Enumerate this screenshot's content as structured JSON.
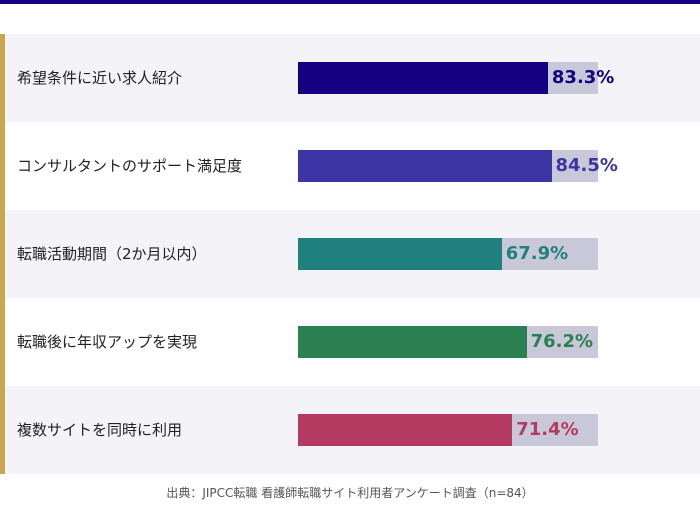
{
  "chart_data": {
    "type": "bar",
    "orientation": "horizontal",
    "categories": [
      "希望条件に近い求人紹介",
      "コンサルタントのサポート満足度",
      "転職活動期間（2か月以内）",
      "転職後に年収アップを実現",
      "複数サイトを同時に利用"
    ],
    "values": [
      83.3,
      84.5,
      67.9,
      76.2,
      71.4
    ],
    "value_labels": [
      "83.3%",
      "84.5%",
      "67.9%",
      "76.2%",
      "71.4%"
    ],
    "colors": [
      "#140080",
      "#3d34a5",
      "#20807e",
      "#2a8050",
      "#b53a62"
    ],
    "xlim": [
      0,
      100
    ],
    "unit": "%"
  },
  "source": "出典：JIPCC転職 看護師転職サイト利用者アンケート調査（n=84）"
}
